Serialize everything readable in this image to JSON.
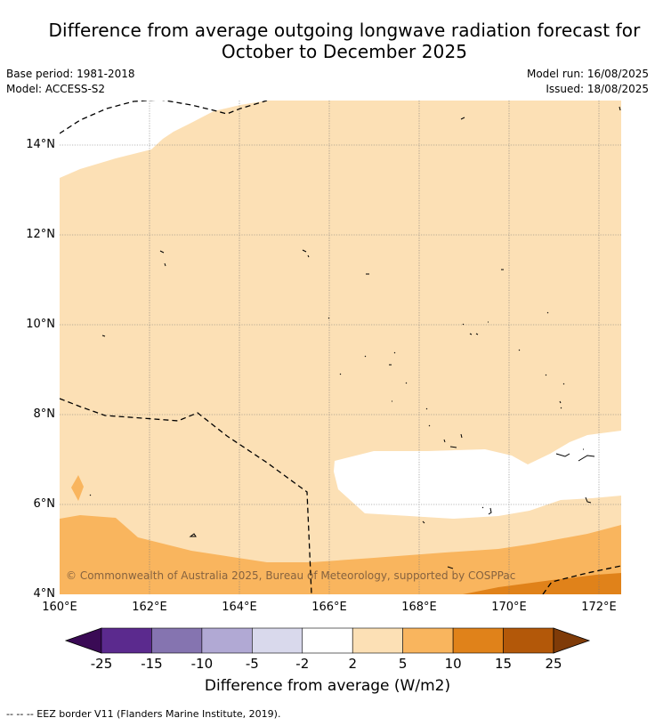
{
  "title": {
    "line1": "Difference from average outgoing longwave radiation forecast for",
    "line2": "October to December 2025"
  },
  "meta": {
    "base_period": "Base period: 1981-2018",
    "model": "Model: ACCESS-S2",
    "model_run": "Model run: 16/08/2025",
    "issued": "Issued: 18/08/2025"
  },
  "map": {
    "lat_labels": [
      "14°N",
      "12°N",
      "10°N",
      "8°N",
      "6°N",
      "4°N"
    ],
    "lon_labels": [
      "160°E",
      "162°E",
      "164°E",
      "166°E",
      "168°E",
      "170°E",
      "172°E"
    ],
    "copyright": "© Commonwealth of Australia 2025, Bureau of Meteorology, supported by COSPPac",
    "colors": {
      "near_zero": "#ffffff",
      "pos_2_5": "#fce0b5",
      "pos_5_10": "#f9b55e",
      "pos_10_15": "#e0821a"
    }
  },
  "colorbar": {
    "tick_labels": [
      "-25",
      "-15",
      "-10",
      "-5",
      "-2",
      "2",
      "5",
      "10",
      "15",
      "25"
    ],
    "colors": [
      "#3a0a55",
      "#5b2a8e",
      "#8574b0",
      "#b1a9d4",
      "#d9d9ec",
      "#ffffff",
      "#fce0b5",
      "#f9b55e",
      "#e0821a",
      "#b35809",
      "#7f3b08"
    ],
    "title": "Difference from average (W/m2)"
  },
  "footer": {
    "eez_note": "-- -- -- EEZ border V11 (Flanders Marine Institute, 2019)."
  }
}
